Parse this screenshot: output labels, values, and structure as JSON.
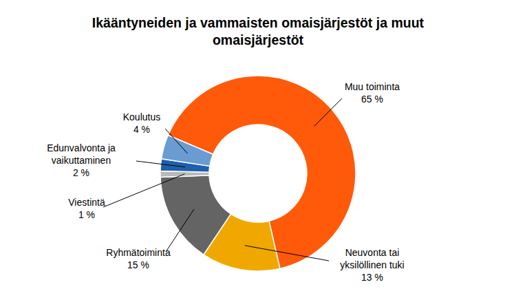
{
  "chart_data": {
    "type": "donut",
    "title": "Ikääntyneiden ja vammaisten omaisjärjestöt ja muut omaisjärjestöt",
    "categories": [
      "Muu toiminta",
      "Neuvonta tai yksilöllinen tuki",
      "Ryhmätoiminta",
      "Viestintä",
      "Edunvalvonta ja vaikuttaminen",
      "Koulutus"
    ],
    "values": [
      65,
      13,
      15,
      1,
      2,
      4
    ],
    "value_labels": [
      "65 %",
      "13 %",
      "15 %",
      "1 %",
      "2 %",
      "4 %"
    ],
    "colors": [
      "#ff5a0a",
      "#f0a800",
      "#646464",
      "#b9b9b9",
      "#1f5fad",
      "#6a9bd3"
    ],
    "data_labels": true
  }
}
